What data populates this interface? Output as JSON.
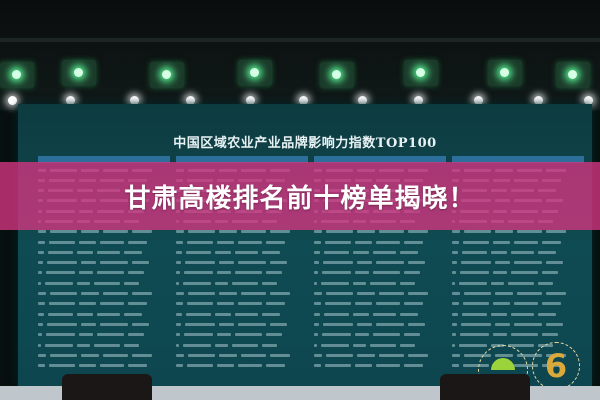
{
  "screen": {
    "title": "中国区域农业产业品牌影响力指数TOP100"
  },
  "overlay": {
    "headline": "甘肃高楼排名前十榜单揭晓！",
    "band_color": "#d63482"
  },
  "logos": {
    "anniversary_number": "6"
  }
}
